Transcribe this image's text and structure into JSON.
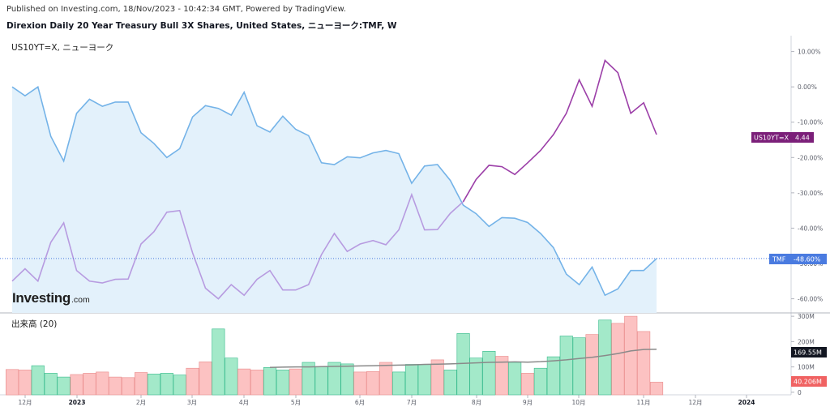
{
  "header": {
    "published": "Published on Investing.com, 18/Nov/2023 - 10:42:34 GMT, Powered by TradingView.",
    "title": "Direxion Daily 20  Year Treasury Bull 3X Shares, United States, ニューヨーク:TMF, W"
  },
  "legend": {
    "overlay": "US10YT=X, ニューヨーク"
  },
  "volume_pane": {
    "label": "出来高 (20)"
  },
  "logo": {
    "main": "Investing",
    "suffix": ".com"
  },
  "badges": {
    "us10y_name": "US10YT=X",
    "us10y_value": "4.44",
    "tmf_name": "TMF",
    "tmf_value": "-48.60%",
    "vol_ma_value": "169.55M",
    "vol_last_value": "40.206M"
  },
  "colors": {
    "tmf_line": "#74b3e8",
    "tmf_fill": "#e3f1fb",
    "us10y_line": "#b79be0",
    "us10y_highlight": "#9c3fa8",
    "vol_up": "#a3e9c9",
    "vol_up_edge": "#33b98a",
    "vol_down": "#fcc2c2",
    "vol_down_edge": "#e98a8a",
    "vol_ma": "#8a8a8a",
    "tmf_badge": "#4a7be0",
    "us10y_badge": "#7b1f79",
    "dark_badge": "#131722",
    "down_badge": "#f06262"
  },
  "chart_data": [
    {
      "type": "area",
      "name": "TMF percent change",
      "y_unit": "%",
      "yticks": [
        "10.00%",
        "0.00%",
        "-10.00%",
        "-20.00%",
        "-30.00%",
        "-40.00%",
        "-50.00%",
        "-60.00%"
      ],
      "y_tick_values": [
        10,
        0,
        -10,
        -20,
        -30,
        -40,
        -50,
        -60
      ],
      "ylim": [
        -64,
        14.5
      ],
      "x_ticks": [
        "12月",
        "2023",
        "2月",
        "3月",
        "4月",
        "5月",
        "6月",
        "7月",
        "8月",
        "9月",
        "10月",
        "11月",
        "12月",
        "2024"
      ],
      "series": [
        {
          "values": [
            0,
            -2.5,
            0,
            -14,
            -21,
            -7.5,
            -3.5,
            -5.5,
            -4.3,
            -4.3,
            -13,
            -16,
            -20,
            -17.5,
            -8.5,
            -5.3,
            -6.1,
            -8,
            -1.5,
            -11,
            -12.8,
            -8.3,
            -12,
            -13.8,
            -21.5,
            -22,
            -19.8,
            -20.1,
            -18.7,
            -18,
            -18.9,
            -27.3,
            -22.4,
            -22,
            -26.5,
            -33.5,
            -35.9,
            -39.5,
            -37,
            -37.2,
            -38.4,
            -41.5,
            -45.5,
            -53,
            -56,
            -51,
            -59,
            -57.2,
            -52,
            -52,
            -48.6
          ]
        }
      ],
      "last_value": "-48.60%"
    },
    {
      "type": "line",
      "name": "US10YT=X",
      "series": [
        {
          "values": [
            -55,
            -51.5,
            -55,
            -44,
            -38.5,
            -52,
            -55,
            -55.5,
            -54.5,
            -54.4,
            -44.5,
            -41,
            -35.5,
            -35,
            -47,
            -57,
            -60,
            -56,
            -59,
            -54.5,
            -52,
            -57.5,
            -57.5,
            -56,
            -47.5,
            -41.5,
            -46.6,
            -44.5,
            -43.5,
            -44.7,
            -40.5,
            -30.5,
            -40.5,
            -40.4,
            -35.8,
            -32.5,
            -26.2,
            -22.2,
            -22.6,
            -24.8,
            -21.5,
            -18,
            -13.5,
            -7.5,
            2,
            -5.5,
            7.5,
            4,
            -7.5,
            -4.5,
            -13.5
          ]
        }
      ],
      "last_value": "4.44"
    },
    {
      "type": "bar",
      "name": "出来高 (20)",
      "y_unit": "M",
      "yticks": [
        "300M",
        "200M",
        "100M",
        "0"
      ],
      "y_tick_values": [
        300,
        200,
        100,
        0
      ],
      "ylim": [
        -10,
        310
      ],
      "values": [
        90,
        88,
        105,
        75,
        60,
        70,
        75,
        80,
        60,
        58,
        78,
        72,
        75,
        68,
        95,
        120,
        250,
        135,
        92,
        88,
        98,
        88,
        92,
        118,
        100,
        118,
        112,
        80,
        82,
        118,
        80,
        110,
        110,
        128,
        88,
        232,
        135,
        162,
        142,
        118,
        75,
        95,
        140,
        222,
        215,
        228,
        285,
        272,
        300,
        240,
        40
      ],
      "direction": [
        "down",
        "down",
        "up",
        "up",
        "up",
        "down",
        "down",
        "down",
        "down",
        "down",
        "down",
        "up",
        "up",
        "up",
        "down",
        "down",
        "up",
        "up",
        "down",
        "down",
        "up",
        "up",
        "down",
        "up",
        "up",
        "up",
        "up",
        "down",
        "down",
        "down",
        "up",
        "up",
        "up",
        "down",
        "up",
        "up",
        "up",
        "up",
        "down",
        "up",
        "down",
        "up",
        "up",
        "up",
        "up",
        "down",
        "up",
        "down",
        "down",
        "down",
        "down"
      ],
      "ma": [
        null,
        null,
        null,
        null,
        null,
        null,
        null,
        null,
        null,
        null,
        null,
        null,
        null,
        null,
        null,
        null,
        null,
        null,
        null,
        null,
        98,
        99,
        100,
        100,
        101,
        102,
        103,
        104,
        105,
        106,
        107,
        108,
        110,
        111,
        112,
        114,
        116,
        118,
        119,
        120,
        119,
        121,
        124,
        128,
        133,
        138,
        145,
        153,
        163,
        169,
        169.55
      ],
      "ma_last_value": "169.55M",
      "last_value": "40.206M"
    }
  ]
}
